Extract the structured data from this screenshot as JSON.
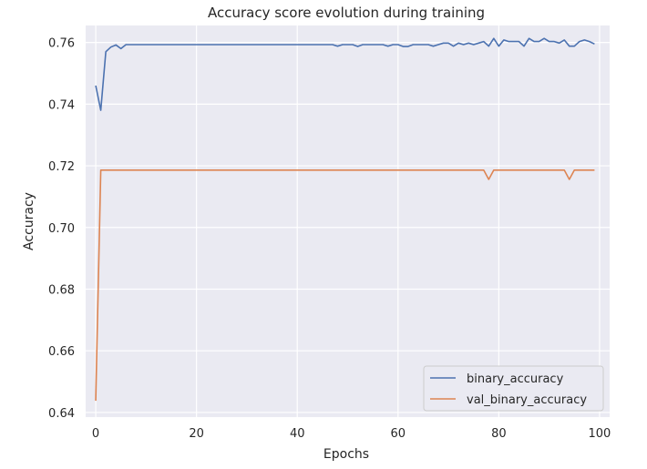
{
  "chart_data": {
    "type": "line",
    "title": "Accuracy score evolution during training",
    "xlabel": "Epochs",
    "ylabel": "Accuracy",
    "xlim": [
      -2,
      102
    ],
    "ylim": [
      0.6385,
      0.7655
    ],
    "xticks": [
      0,
      20,
      40,
      60,
      80,
      100
    ],
    "yticks": [
      0.64,
      0.66,
      0.68,
      0.7,
      0.72,
      0.74,
      0.76
    ],
    "ytick_labels": [
      "0.64",
      "0.66",
      "0.68",
      "0.70",
      "0.72",
      "0.74",
      "0.76"
    ],
    "grid": true,
    "legend": "lower-right",
    "series": [
      {
        "name": "binary_accuracy",
        "color": "#4c72b0",
        "x": [
          0,
          1,
          2,
          3,
          4,
          5,
          6,
          7,
          8,
          9,
          10,
          11,
          12,
          13,
          14,
          15,
          16,
          17,
          18,
          19,
          20,
          21,
          22,
          23,
          24,
          25,
          26,
          27,
          28,
          29,
          30,
          31,
          32,
          33,
          34,
          35,
          36,
          37,
          38,
          39,
          40,
          41,
          42,
          43,
          44,
          45,
          46,
          47,
          48,
          49,
          50,
          51,
          52,
          53,
          54,
          55,
          56,
          57,
          58,
          59,
          60,
          61,
          62,
          63,
          64,
          65,
          66,
          67,
          68,
          69,
          70,
          71,
          72,
          73,
          74,
          75,
          76,
          77,
          78,
          79,
          80,
          81,
          82,
          83,
          84,
          85,
          86,
          87,
          88,
          89,
          90,
          91,
          92,
          93,
          94,
          95,
          96,
          97,
          98,
          99
        ],
        "y": [
          0.746,
          0.738,
          0.757,
          0.7585,
          0.7592,
          0.758,
          0.7593,
          0.7593,
          0.7593,
          0.7593,
          0.7593,
          0.7593,
          0.7593,
          0.7593,
          0.7593,
          0.7593,
          0.7593,
          0.7593,
          0.7593,
          0.7593,
          0.7593,
          0.7593,
          0.7593,
          0.7593,
          0.7593,
          0.7593,
          0.7593,
          0.7593,
          0.7593,
          0.7593,
          0.7593,
          0.7593,
          0.7593,
          0.7593,
          0.7593,
          0.7593,
          0.7593,
          0.7593,
          0.7593,
          0.7593,
          0.7593,
          0.7593,
          0.7593,
          0.7593,
          0.7593,
          0.7593,
          0.7593,
          0.7593,
          0.7588,
          0.7593,
          0.7593,
          0.7593,
          0.7587,
          0.7593,
          0.7593,
          0.7593,
          0.7593,
          0.7593,
          0.7588,
          0.7593,
          0.7593,
          0.7587,
          0.7587,
          0.7593,
          0.7593,
          0.7593,
          0.7593,
          0.7588,
          0.7593,
          0.7598,
          0.7598,
          0.7588,
          0.7598,
          0.7593,
          0.7598,
          0.7593,
          0.7598,
          0.7603,
          0.7588,
          0.7613,
          0.7588,
          0.7608,
          0.7603,
          0.7603,
          0.7603,
          0.7588,
          0.7613,
          0.7603,
          0.7603,
          0.7613,
          0.7603,
          0.7603,
          0.7598,
          0.7608,
          0.7588,
          0.7588,
          0.7603,
          0.7608,
          0.7603,
          0.7595
        ]
      },
      {
        "name": "val_binary_accuracy",
        "color": "#dd8452",
        "x": [
          0,
          1,
          2,
          3,
          4,
          5,
          6,
          7,
          8,
          9,
          10,
          11,
          12,
          13,
          14,
          15,
          16,
          17,
          18,
          19,
          20,
          21,
          22,
          23,
          24,
          25,
          26,
          27,
          28,
          29,
          30,
          31,
          32,
          33,
          34,
          35,
          36,
          37,
          38,
          39,
          40,
          41,
          42,
          43,
          44,
          45,
          46,
          47,
          48,
          49,
          50,
          51,
          52,
          53,
          54,
          55,
          56,
          57,
          58,
          59,
          60,
          61,
          62,
          63,
          64,
          65,
          66,
          67,
          68,
          69,
          70,
          71,
          72,
          73,
          74,
          75,
          76,
          77,
          78,
          79,
          80,
          81,
          82,
          83,
          84,
          85,
          86,
          87,
          88,
          89,
          90,
          91,
          92,
          93,
          94,
          95,
          96,
          97,
          98,
          99
        ],
        "y": [
          0.6438,
          0.7186,
          0.7186,
          0.7186,
          0.7186,
          0.7186,
          0.7186,
          0.7186,
          0.7186,
          0.7186,
          0.7186,
          0.7186,
          0.7186,
          0.7186,
          0.7186,
          0.7186,
          0.7186,
          0.7186,
          0.7186,
          0.7186,
          0.7186,
          0.7186,
          0.7186,
          0.7186,
          0.7186,
          0.7186,
          0.7186,
          0.7186,
          0.7186,
          0.7186,
          0.7186,
          0.7186,
          0.7186,
          0.7186,
          0.7186,
          0.7186,
          0.7186,
          0.7186,
          0.7186,
          0.7186,
          0.7186,
          0.7186,
          0.7186,
          0.7186,
          0.7186,
          0.7186,
          0.7186,
          0.7186,
          0.7186,
          0.7186,
          0.7186,
          0.7186,
          0.7186,
          0.7186,
          0.7186,
          0.7186,
          0.7186,
          0.7186,
          0.7186,
          0.7186,
          0.7186,
          0.7186,
          0.7186,
          0.7186,
          0.7186,
          0.7186,
          0.7186,
          0.7186,
          0.7186,
          0.7186,
          0.7186,
          0.7186,
          0.7186,
          0.7186,
          0.7186,
          0.7186,
          0.7186,
          0.7186,
          0.7156,
          0.7186,
          0.7186,
          0.7186,
          0.7186,
          0.7186,
          0.7186,
          0.7186,
          0.7186,
          0.7186,
          0.7186,
          0.7186,
          0.7186,
          0.7186,
          0.7186,
          0.7186,
          0.7156,
          0.7186,
          0.7186,
          0.7186,
          0.7186,
          0.7186
        ]
      }
    ]
  }
}
